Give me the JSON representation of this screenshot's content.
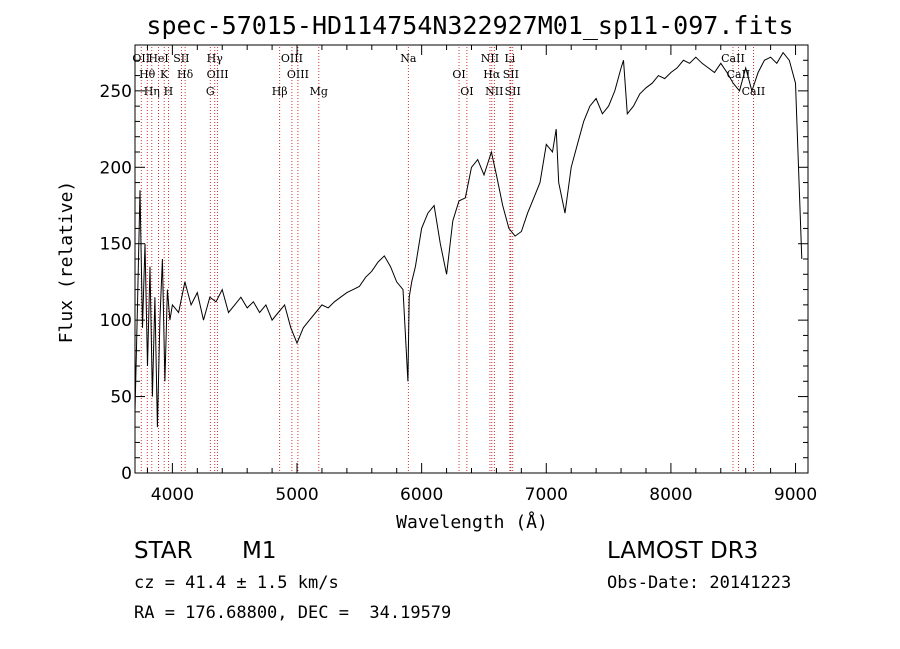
{
  "chart_data": {
    "type": "line",
    "title": "spec-57015-HD114754N322927M01_sp11-097.fits",
    "xlabel": "Wavelength (Å)",
    "ylabel": "Flux (relative)",
    "xlim": [
      3700,
      9100
    ],
    "ylim": [
      0,
      280
    ],
    "x_ticks": [
      4000,
      5000,
      6000,
      7000,
      8000,
      9000
    ],
    "y_ticks": [
      0,
      50,
      100,
      150,
      200,
      250
    ],
    "series": [
      {
        "x": [
          3700,
          3720,
          3740,
          3760,
          3780,
          3800,
          3820,
          3840,
          3860,
          3880,
          3900,
          3920,
          3940,
          3960,
          3980,
          4000,
          4050,
          4100,
          4150,
          4200,
          4250,
          4300,
          4350,
          4400,
          4450,
          4500,
          4550,
          4600,
          4650,
          4700,
          4750,
          4800,
          4850,
          4900,
          4950,
          5000,
          5050,
          5100,
          5150,
          5200,
          5250,
          5300,
          5350,
          5400,
          5450,
          5500,
          5550,
          5600,
          5650,
          5700,
          5750,
          5800,
          5850,
          5890,
          5900,
          5920,
          5950,
          6000,
          6050,
          6100,
          6150,
          6200,
          6250,
          6300,
          6350,
          6400,
          6450,
          6500,
          6560,
          6600,
          6650,
          6700,
          6750,
          6800,
          6850,
          6900,
          6950,
          7000,
          7050,
          7080,
          7100,
          7150,
          7200,
          7250,
          7300,
          7350,
          7400,
          7450,
          7500,
          7550,
          7600,
          7620,
          7650,
          7700,
          7750,
          7800,
          7850,
          7900,
          7950,
          8000,
          8050,
          8100,
          8150,
          8200,
          8250,
          8300,
          8350,
          8400,
          8450,
          8500,
          8550,
          8600,
          8650,
          8700,
          8750,
          8800,
          8850,
          8900,
          8950,
          9000,
          9050
        ],
        "y": [
          40,
          110,
          185,
          95,
          150,
          70,
          135,
          50,
          115,
          30,
          100,
          140,
          60,
          120,
          100,
          110,
          105,
          125,
          110,
          118,
          100,
          115,
          112,
          120,
          105,
          110,
          115,
          108,
          112,
          105,
          110,
          100,
          105,
          110,
          95,
          85,
          95,
          100,
          105,
          110,
          108,
          112,
          115,
          118,
          120,
          122,
          128,
          132,
          138,
          142,
          135,
          125,
          120,
          60,
          115,
          125,
          135,
          160,
          170,
          175,
          150,
          130,
          165,
          178,
          180,
          200,
          205,
          195,
          210,
          195,
          175,
          160,
          155,
          158,
          170,
          180,
          190,
          215,
          210,
          225,
          190,
          170,
          200,
          215,
          230,
          240,
          245,
          235,
          240,
          250,
          265,
          270,
          235,
          240,
          248,
          252,
          255,
          260,
          258,
          262,
          265,
          270,
          268,
          272,
          268,
          265,
          262,
          268,
          262,
          255,
          250,
          265,
          250,
          262,
          270,
          272,
          268,
          275,
          270,
          255,
          140
        ]
      }
    ],
    "line_annotations": [
      {
        "x": 3750,
        "label": "OII"
      },
      {
        "x": 3798,
        "label": "Hθ"
      },
      {
        "x": 3835,
        "label": "Hη"
      },
      {
        "x": 3889,
        "label": "HeI"
      },
      {
        "x": 3934,
        "label": "K"
      },
      {
        "x": 3968,
        "label": "H"
      },
      {
        "x": 4072,
        "label": "SII"
      },
      {
        "x": 4102,
        "label": "Hδ"
      },
      {
        "x": 4304,
        "label": "G"
      },
      {
        "x": 4340,
        "label": "Hγ"
      },
      {
        "x": 4363,
        "label": "OIII"
      },
      {
        "x": 4861,
        "label": "Hβ"
      },
      {
        "x": 4959,
        "label": "OIII"
      },
      {
        "x": 5007,
        "label": "OIII"
      },
      {
        "x": 5175,
        "label": "Mg"
      },
      {
        "x": 5893,
        "label": "Na"
      },
      {
        "x": 6300,
        "label": "OI"
      },
      {
        "x": 6363,
        "label": "OI"
      },
      {
        "x": 6548,
        "label": "NII"
      },
      {
        "x": 6563,
        "label": "Hα"
      },
      {
        "x": 6583,
        "label": "NII"
      },
      {
        "x": 6708,
        "label": "Li"
      },
      {
        "x": 6716,
        "label": "SII"
      },
      {
        "x": 6731,
        "label": "SII"
      },
      {
        "x": 8498,
        "label": "CaII"
      },
      {
        "x": 8542,
        "label": "CaII"
      },
      {
        "x": 8662,
        "label": "CaII"
      }
    ]
  },
  "info": {
    "object_type": "STAR",
    "subclass": "M1",
    "survey": "LAMOST DR3",
    "cz": "cz = 41.4 ± 1.5 km/s",
    "obs_date": "Obs-Date: 20141223",
    "coords": "RA = 176.68800, DEC =  34.19579"
  },
  "colors": {
    "spectrum": "#000000",
    "line_markers": "#c00000",
    "axes": "#000000"
  }
}
